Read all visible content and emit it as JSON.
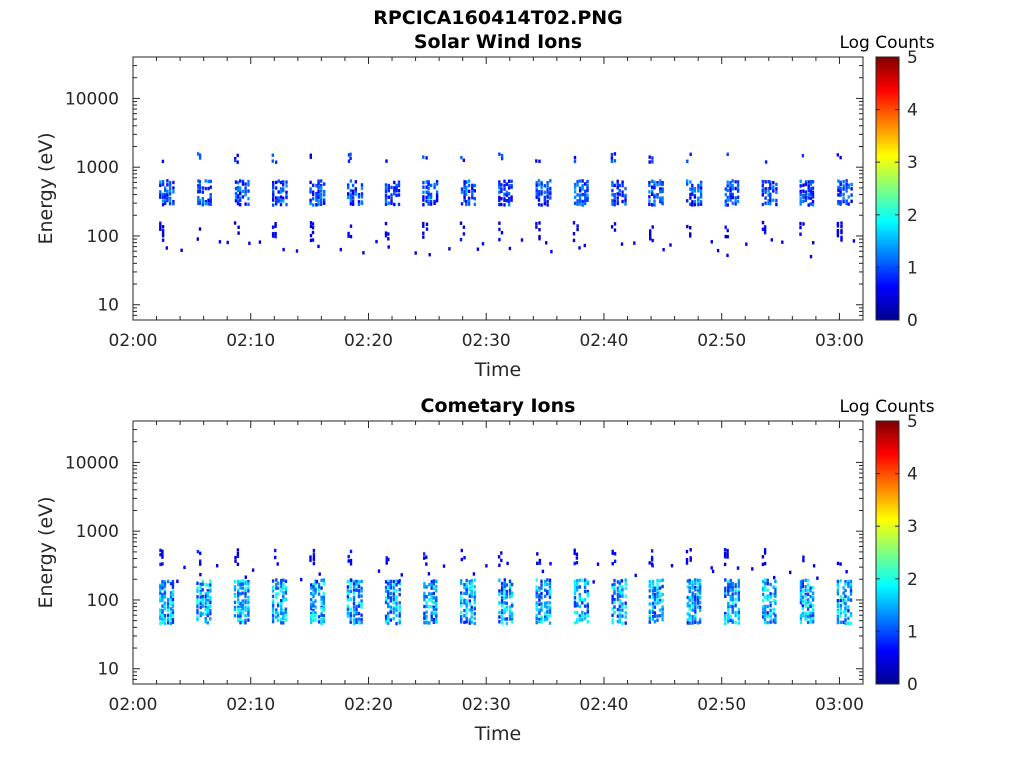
{
  "figure_title": "RPCICA160414T02.PNG",
  "colors": {
    "colormap": [
      "#00008f",
      "#0000ff",
      "#00ffff",
      "#ffff00",
      "#ff0000",
      "#800000"
    ],
    "axis": "#262626"
  },
  "chart_data": [
    {
      "type": "heatmap",
      "title": "Solar Wind Ions",
      "xlabel": "Time",
      "ylabel": "Energy (eV)",
      "colorbar_label": "Log Counts",
      "x_ticks": [
        "02:00",
        "02:10",
        "02:20",
        "02:30",
        "02:40",
        "02:50",
        "03:00"
      ],
      "y_ticks": [
        "10",
        "100",
        "1000",
        "10000"
      ],
      "y_scale": "log",
      "ylim": [
        6,
        40000
      ],
      "xlim_minutes": [
        0,
        62
      ],
      "clim": [
        0,
        5
      ],
      "colorbar_ticks": [
        "0",
        "1",
        "2",
        "3",
        "4",
        "5"
      ],
      "grid": false,
      "sweep_period_minutes": 3.2,
      "sweep_start_minutes": 2.2,
      "bands": [
        {
          "name": "main",
          "energy_low_eV": 300,
          "energy_high_eV": 650,
          "log_counts": 1.0
        },
        {
          "name": "upper",
          "energy_low_eV": 1200,
          "energy_high_eV": 1600,
          "log_counts": 0.8
        },
        {
          "name": "lower",
          "energy_low_eV": 90,
          "energy_high_eV": 160,
          "log_counts": 0.5
        }
      ]
    },
    {
      "type": "heatmap",
      "title": "Cometary Ions",
      "xlabel": "Time",
      "ylabel": "Energy (eV)",
      "colorbar_label": "Log Counts",
      "x_ticks": [
        "02:00",
        "02:10",
        "02:20",
        "02:30",
        "02:40",
        "02:50",
        "03:00"
      ],
      "y_ticks": [
        "10",
        "100",
        "1000",
        "10000"
      ],
      "y_scale": "log",
      "ylim": [
        6,
        40000
      ],
      "xlim_minutes": [
        0,
        62
      ],
      "clim": [
        0,
        5
      ],
      "colorbar_ticks": [
        "0",
        "1",
        "2",
        "3",
        "4",
        "5"
      ],
      "grid": false,
      "sweep_period_minutes": 3.2,
      "sweep_start_minutes": 2.2,
      "bands": [
        {
          "name": "main",
          "energy_low_eV": 45,
          "energy_high_eV": 200,
          "log_counts": 1.5
        },
        {
          "name": "upper",
          "energy_low_eV": 350,
          "energy_high_eV": 550,
          "log_counts": 0.6
        }
      ]
    }
  ]
}
